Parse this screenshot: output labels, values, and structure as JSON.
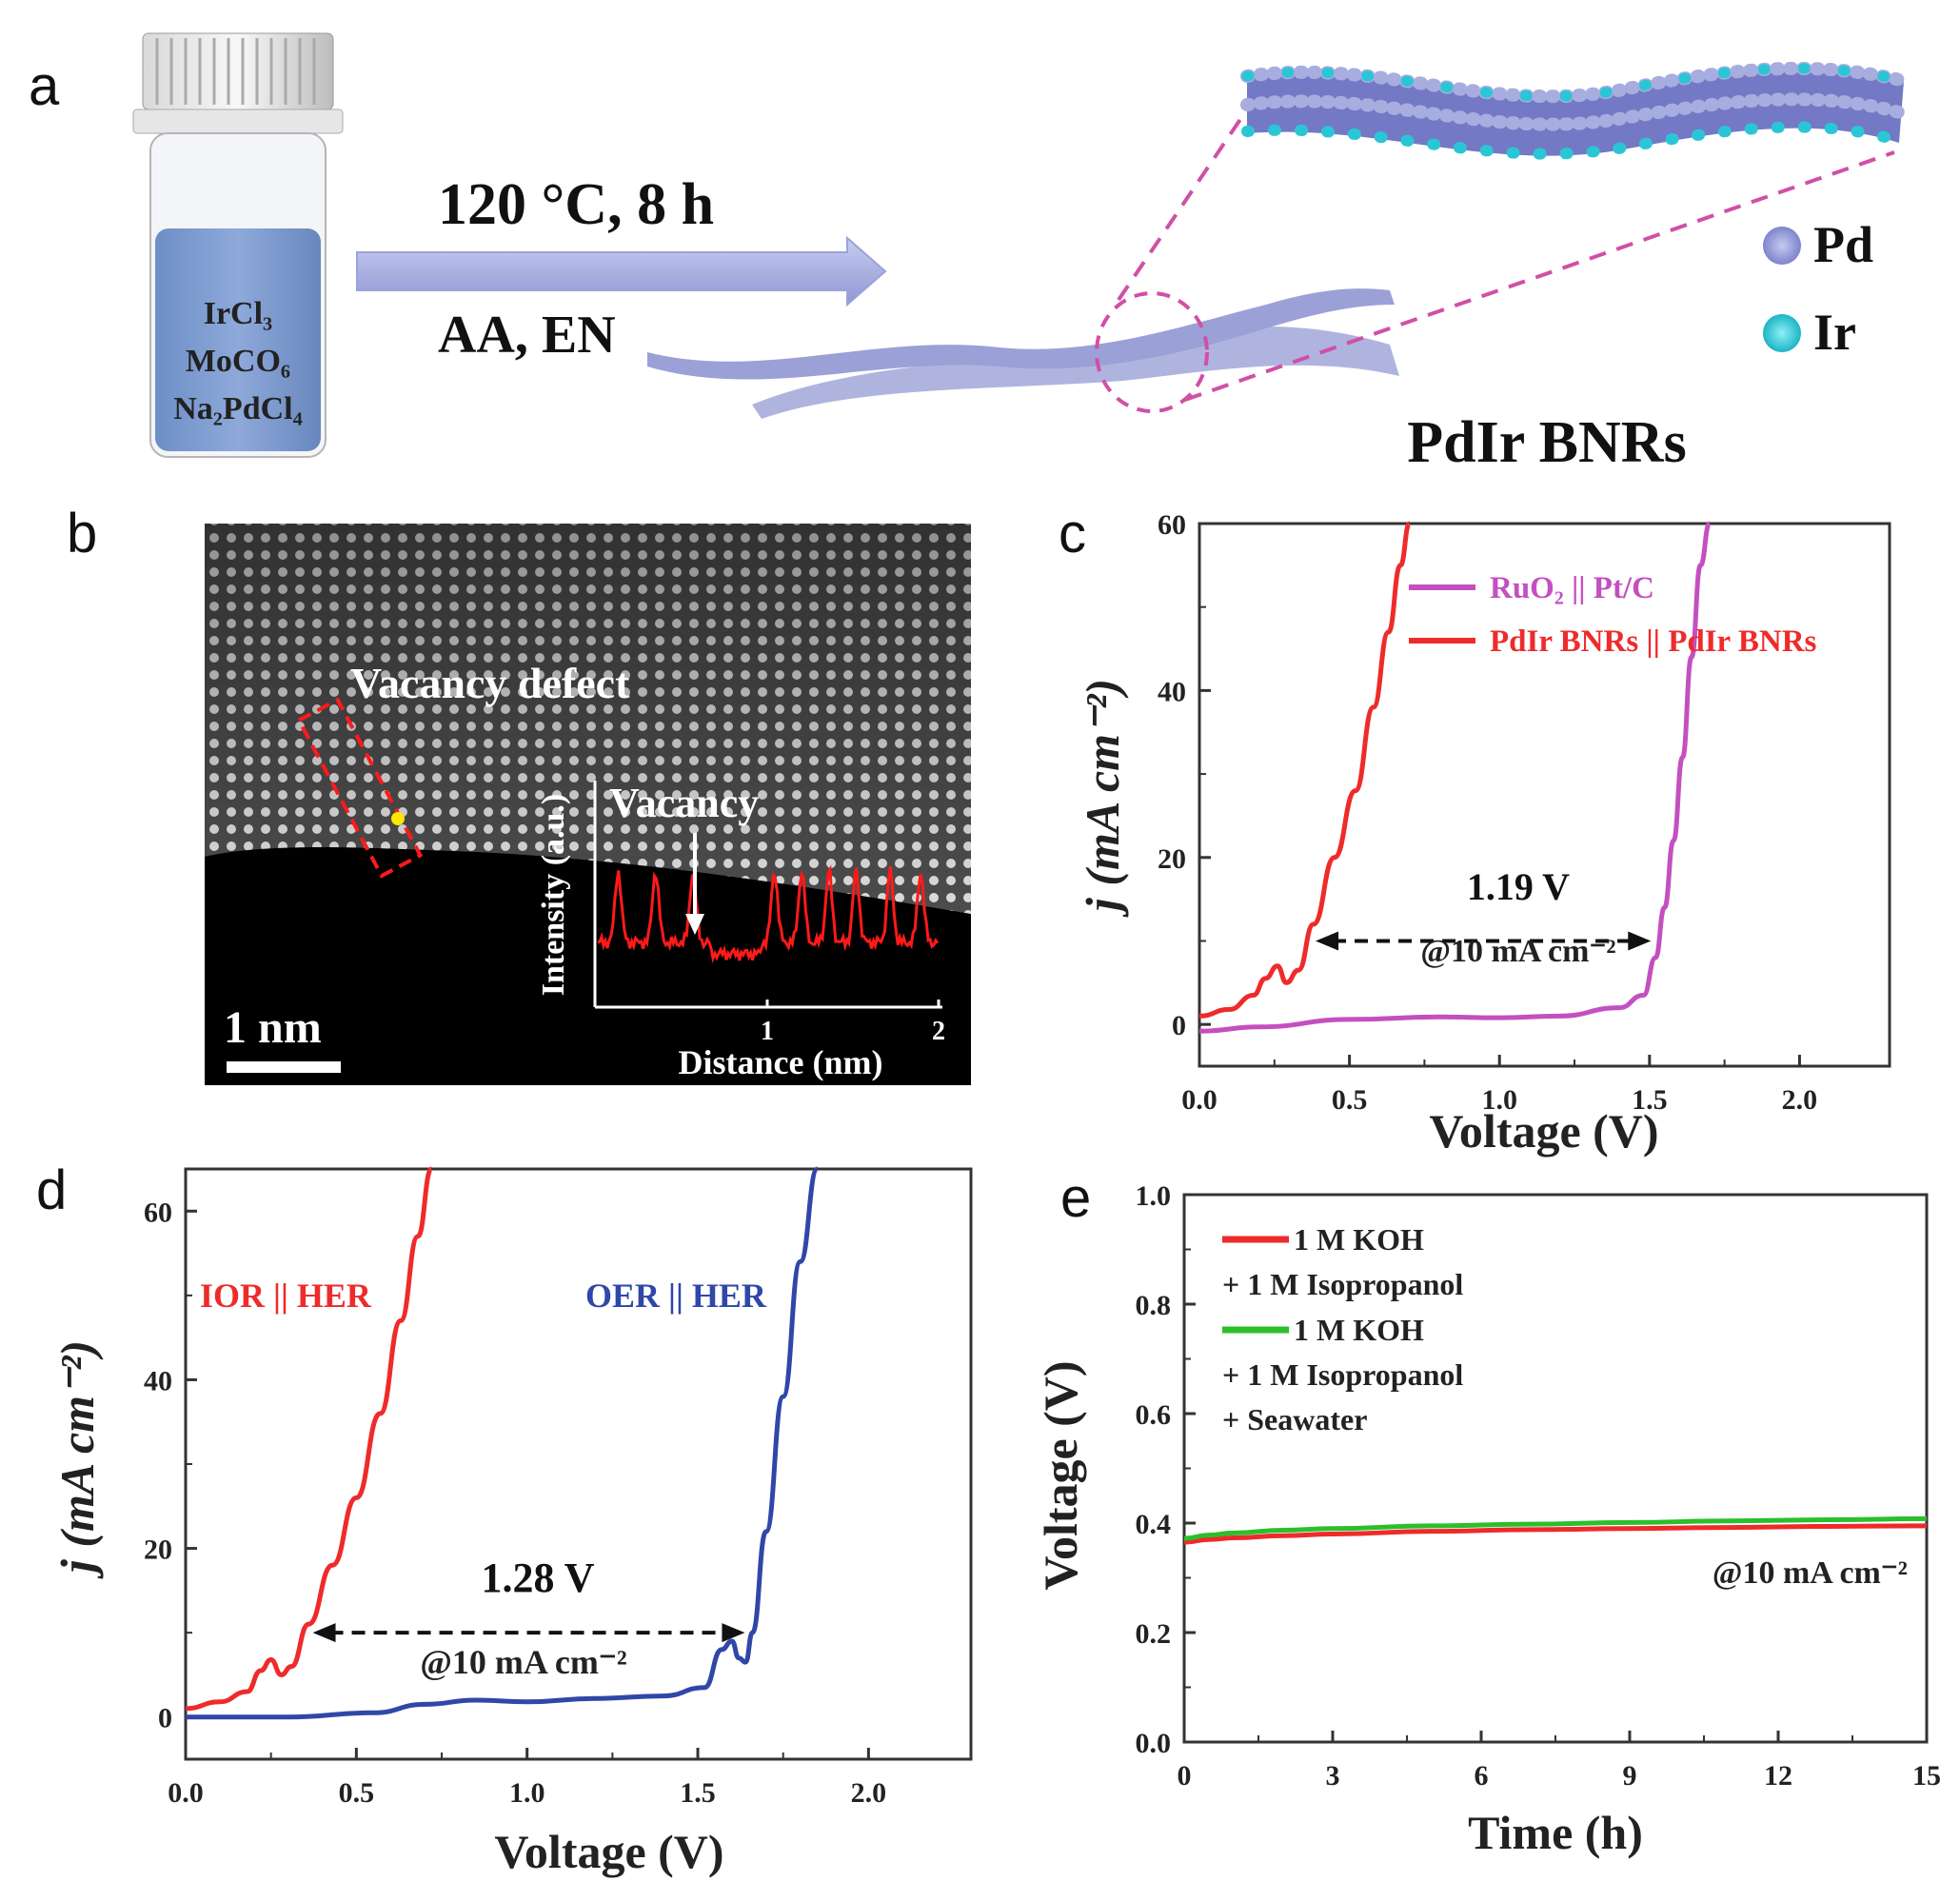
{
  "panel_a": {
    "letter": "a",
    "vial_lines": [
      "IrCl₃",
      "MoCO₆",
      "Na₂PdCl₄"
    ],
    "condition_top": "120 °C, 8 h",
    "condition_bottom": "AA, EN",
    "product_label": "PdIr BNRs",
    "legend": [
      {
        "label": "Pd",
        "color": "#8d93d6"
      },
      {
        "label": "Ir",
        "color": "#2bc6d6"
      }
    ]
  },
  "panel_b": {
    "letter": "b",
    "vacancy_defect_label": "Vacancy defect",
    "vacancy_label": "Vacancy",
    "inset_ylabel": "Intensity (a.u.)",
    "inset_xlabel": "Distance (nm)",
    "inset_ticks": [
      "1",
      "2"
    ],
    "scale_bar": "1 nm"
  },
  "chart_data": [
    {
      "id": "c",
      "letter": "c",
      "type": "line",
      "xlabel": "Voltage (V)",
      "ylabel": "j (mA cm⁻²)",
      "xlim": [
        0,
        2.3
      ],
      "ylim": [
        -5,
        60
      ],
      "xticks": [
        "0.0",
        "0.5",
        "1.0",
        "1.5",
        "2.0"
      ],
      "yticks": [
        "0",
        "20",
        "40",
        "60"
      ],
      "annotation_value": "1.19 V",
      "annotation_condition": "@10 mA cm⁻²",
      "series": [
        {
          "name": "RuO₂ || Pt/C",
          "color": "#c44fc0",
          "x": [
            0,
            0.2,
            0.5,
            0.8,
            1.0,
            1.2,
            1.4,
            1.48,
            1.52,
            1.55,
            1.58,
            1.61,
            1.64,
            1.67,
            1.7
          ],
          "y": [
            -0.8,
            -0.3,
            0.6,
            0.9,
            0.8,
            1.0,
            2.0,
            3.5,
            8,
            14,
            22,
            32,
            44,
            55,
            60
          ]
        },
        {
          "name": "PdIr BNRs || PdIr BNRs",
          "color": "#ee2b2b",
          "x": [
            0,
            0.1,
            0.18,
            0.22,
            0.26,
            0.29,
            0.33,
            0.38,
            0.45,
            0.52,
            0.58,
            0.63,
            0.67,
            0.7
          ],
          "y": [
            1,
            1.8,
            3.5,
            5.5,
            7,
            5,
            6.5,
            12,
            20,
            28,
            38,
            47,
            55,
            60
          ]
        }
      ]
    },
    {
      "id": "d",
      "letter": "d",
      "type": "line",
      "xlabel": "Voltage (V)",
      "ylabel": "j (mA cm⁻²)",
      "xlim": [
        0,
        2.3
      ],
      "ylim": [
        -5,
        65
      ],
      "xticks": [
        "0.0",
        "0.5",
        "1.0",
        "1.5",
        "2.0"
      ],
      "yticks": [
        "0",
        "20",
        "40",
        "60"
      ],
      "annotation_value": "1.28 V",
      "annotation_condition": "@10 mA cm⁻²",
      "series": [
        {
          "name": "IOR || HER",
          "color": "#ee2b2b",
          "x": [
            0,
            0.1,
            0.18,
            0.22,
            0.25,
            0.28,
            0.31,
            0.36,
            0.43,
            0.5,
            0.57,
            0.63,
            0.68,
            0.72
          ],
          "y": [
            1,
            1.8,
            3,
            5.5,
            6.8,
            5,
            6,
            11,
            18,
            26,
            36,
            47,
            57,
            65
          ]
        },
        {
          "name": "OER || HER",
          "color": "#2f47a8",
          "x": [
            0,
            0.3,
            0.55,
            0.7,
            0.85,
            1.0,
            1.2,
            1.4,
            1.52,
            1.57,
            1.6,
            1.62,
            1.64,
            1.66,
            1.7,
            1.75,
            1.8,
            1.85
          ],
          "y": [
            0,
            0,
            0.5,
            1.5,
            2,
            1.8,
            2.2,
            2.5,
            3.5,
            8,
            9,
            7,
            6.5,
            10,
            22,
            38,
            54,
            65
          ]
        }
      ]
    },
    {
      "id": "e",
      "letter": "e",
      "type": "line",
      "xlabel": "Time (h)",
      "ylabel": "Voltage (V)",
      "xlim": [
        0,
        15
      ],
      "ylim": [
        0,
        1.0
      ],
      "xticks": [
        "0",
        "3",
        "6",
        "9",
        "12",
        "15"
      ],
      "yticks": [
        "0.0",
        "0.2",
        "0.4",
        "0.6",
        "0.8",
        "1.0"
      ],
      "annotation_condition": "@10 mA cm⁻²",
      "series": [
        {
          "name": "1 M KOH",
          "legend_lines": [
            "+ 1 M Isopropanol"
          ],
          "color": "#ee2b2b",
          "x": [
            0,
            0.5,
            1,
            2,
            3,
            5,
            7,
            9,
            11,
            13,
            15
          ],
          "y": [
            0.365,
            0.37,
            0.373,
            0.377,
            0.38,
            0.385,
            0.388,
            0.39,
            0.392,
            0.394,
            0.395
          ]
        },
        {
          "name": "1 M KOH",
          "legend_lines": [
            "+ 1 M Isopropanol",
            "+ Seawater"
          ],
          "color": "#2bbf2b",
          "x": [
            0,
            0.5,
            1,
            2,
            3,
            5,
            7,
            9,
            11,
            13,
            15
          ],
          "y": [
            0.372,
            0.378,
            0.382,
            0.387,
            0.39,
            0.395,
            0.398,
            0.401,
            0.404,
            0.406,
            0.408
          ]
        }
      ]
    }
  ]
}
